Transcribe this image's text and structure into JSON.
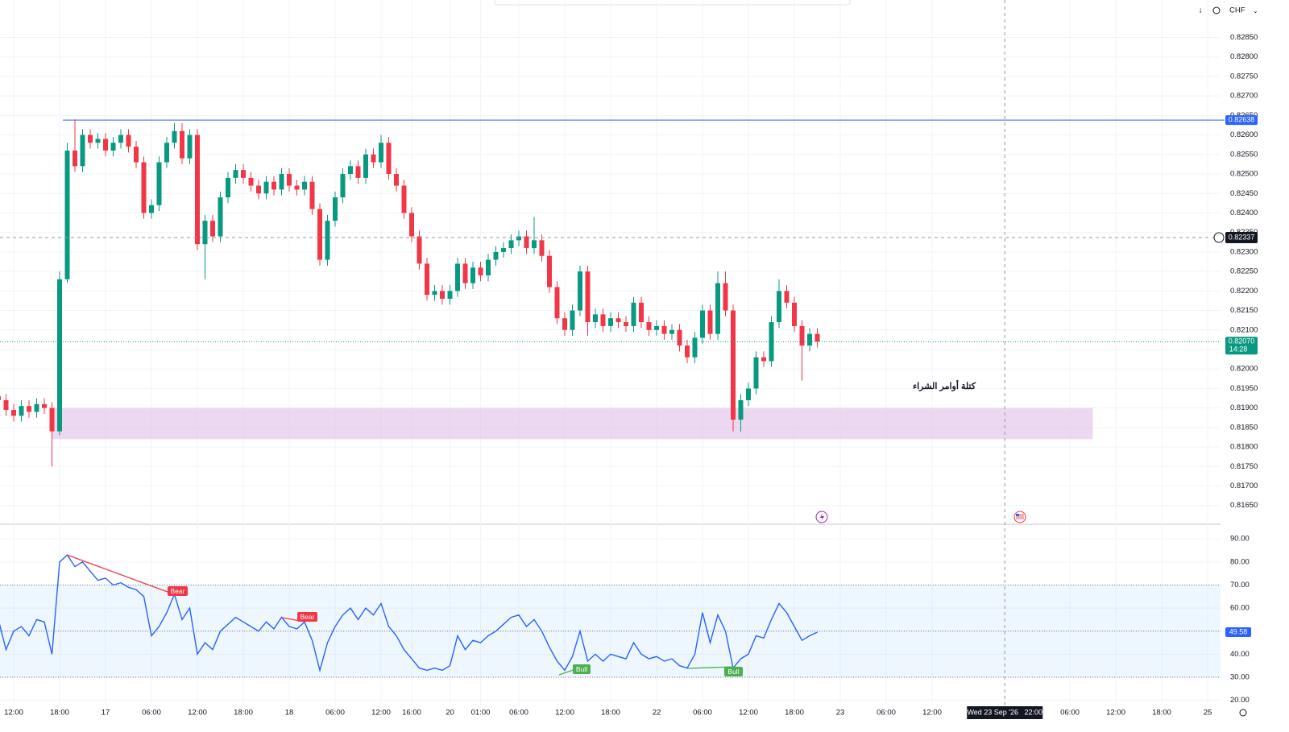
{
  "chart_data": [
    {
      "type": "candlestick",
      "currency": "CHF",
      "up_color": "#089981",
      "down_color": "#f23645",
      "xlim": [
        0,
        160
      ],
      "ylim": [
        0.81604,
        0.82946
      ],
      "xticks": [
        {
          "value": 2,
          "label": "12:00"
        },
        {
          "value": 8,
          "label": "18:00"
        },
        {
          "value": 14,
          "label": "17"
        },
        {
          "value": 20,
          "label": "06:00"
        },
        {
          "value": 26,
          "label": "12:00"
        },
        {
          "value": 32,
          "label": "18:00"
        },
        {
          "value": 38,
          "label": "18"
        },
        {
          "value": 44,
          "label": "06:00"
        },
        {
          "value": 50,
          "label": "12:00"
        },
        {
          "value": 54,
          "label": "16:00"
        },
        {
          "value": 59,
          "label": "20"
        },
        {
          "value": 63,
          "label": "01:00"
        },
        {
          "value": 68,
          "label": "06:00"
        },
        {
          "value": 74,
          "label": "12:00"
        },
        {
          "value": 80,
          "label": "18:00"
        },
        {
          "value": 86,
          "label": "22"
        },
        {
          "value": 92,
          "label": "06:00"
        },
        {
          "value": 98,
          "label": "12:00"
        },
        {
          "value": 104,
          "label": "18:00"
        },
        {
          "value": 110,
          "label": "23"
        },
        {
          "value": 116,
          "label": "06:00"
        },
        {
          "value": 122,
          "label": "12:00"
        },
        {
          "value": 140,
          "label": "06:00"
        },
        {
          "value": 146,
          "label": "12:00"
        },
        {
          "value": 152,
          "label": "18:00"
        },
        {
          "value": 158,
          "label": "25"
        }
      ],
      "yticks": [
        {
          "value": 0.8165,
          "label": "0.81650"
        },
        {
          "value": 0.817,
          "label": "0.81700"
        },
        {
          "value": 0.8175,
          "label": "0.81750"
        },
        {
          "value": 0.818,
          "label": "0.81800"
        },
        {
          "value": 0.8185,
          "label": "0.81850"
        },
        {
          "value": 0.819,
          "label": "0.81900"
        },
        {
          "value": 0.8195,
          "label": "0.81950"
        },
        {
          "value": 0.82,
          "label": "0.82000"
        },
        {
          "value": 0.8205,
          "label": "0.82050"
        },
        {
          "value": 0.821,
          "label": "0.82100"
        },
        {
          "value": 0.8215,
          "label": "0.82150"
        },
        {
          "value": 0.822,
          "label": "0.82200"
        },
        {
          "value": 0.8225,
          "label": "0.82250"
        },
        {
          "value": 0.823,
          "label": "0.82300"
        },
        {
          "value": 0.8235,
          "label": "0.82350"
        },
        {
          "value": 0.824,
          "label": "0.82400"
        },
        {
          "value": 0.8245,
          "label": "0.82450"
        },
        {
          "value": 0.825,
          "label": "0.82500"
        },
        {
          "value": 0.8255,
          "label": "0.82550"
        },
        {
          "value": 0.826,
          "label": "0.82600"
        },
        {
          "value": 0.8265,
          "label": "0.82650"
        },
        {
          "value": 0.827,
          "label": "0.82700"
        },
        {
          "value": 0.8275,
          "label": "0.82750"
        },
        {
          "value": 0.828,
          "label": "0.82800"
        },
        {
          "value": 0.8285,
          "label": "0.82850"
        }
      ],
      "open": [
        0.8193,
        0.8192,
        0.81895,
        0.8188,
        0.81905,
        0.8189,
        0.8191,
        0.819,
        0.8184,
        0.8223,
        0.8256,
        0.8252,
        0.826,
        0.8258,
        0.8259,
        0.8256,
        0.8258,
        0.826,
        0.8257,
        0.8253,
        0.824,
        0.8242,
        0.8253,
        0.8258,
        0.8261,
        0.8254,
        0.826,
        0.8232,
        0.8238,
        0.8234,
        0.8244,
        0.8249,
        0.8251,
        0.8249,
        0.8247,
        0.8245,
        0.8248,
        0.8246,
        0.825,
        0.8247,
        0.8246,
        0.8248,
        0.8241,
        0.8228,
        0.8238,
        0.8244,
        0.825,
        0.8252,
        0.8249,
        0.8255,
        0.8253,
        0.8258,
        0.825,
        0.8247,
        0.824,
        0.8234,
        0.8227,
        0.8219,
        0.822,
        0.8218,
        0.822,
        0.8227,
        0.8222,
        0.8226,
        0.8224,
        0.8228,
        0.823,
        0.8231,
        0.8233,
        0.8234,
        0.8231,
        0.8233,
        0.8229,
        0.8221,
        0.8213,
        0.821,
        0.8215,
        0.8225,
        0.8212,
        0.8214,
        0.8211,
        0.8213,
        0.8212,
        0.8211,
        0.8217,
        0.8212,
        0.821,
        0.8211,
        0.8209,
        0.821,
        0.8206,
        0.8203,
        0.8208,
        0.8215,
        0.8209,
        0.8222,
        0.8215,
        0.8187,
        0.8192,
        0.8195,
        0.8203,
        0.8202,
        0.8212,
        0.822,
        0.8217,
        0.8211,
        0.8206,
        0.8209
      ],
      "high": [
        0.81945,
        0.81935,
        0.8191,
        0.8192,
        0.8192,
        0.81925,
        0.81925,
        0.81915,
        0.8225,
        0.8258,
        0.8264,
        0.82615,
        0.82615,
        0.82605,
        0.82605,
        0.82595,
        0.82615,
        0.82615,
        0.82585,
        0.82545,
        0.82435,
        0.82545,
        0.82595,
        0.8263,
        0.8263,
        0.82615,
        0.82615,
        0.82395,
        0.82395,
        0.82455,
        0.82505,
        0.82525,
        0.82525,
        0.82505,
        0.82485,
        0.82495,
        0.82495,
        0.82515,
        0.82515,
        0.82485,
        0.82495,
        0.82495,
        0.82425,
        0.82395,
        0.82455,
        0.82515,
        0.82535,
        0.82535,
        0.82565,
        0.82565,
        0.826,
        0.82595,
        0.82515,
        0.82485,
        0.82415,
        0.82355,
        0.82285,
        0.82215,
        0.82215,
        0.82215,
        0.82285,
        0.82285,
        0.82275,
        0.82275,
        0.82295,
        0.82315,
        0.82325,
        0.82345,
        0.82355,
        0.82355,
        0.8239,
        0.82345,
        0.82305,
        0.82225,
        0.82145,
        0.82165,
        0.82265,
        0.82265,
        0.82155,
        0.82155,
        0.82145,
        0.82145,
        0.82135,
        0.82185,
        0.82185,
        0.82135,
        0.82125,
        0.82125,
        0.82115,
        0.82115,
        0.82075,
        0.82095,
        0.82165,
        0.82165,
        0.8225,
        0.8225,
        0.82165,
        0.81935,
        0.81965,
        0.82045,
        0.82045,
        0.82135,
        0.8223,
        0.82215,
        0.82185,
        0.82125,
        0.82105,
        0.82105
      ],
      "low": [
        0.81905,
        0.8188,
        0.81865,
        0.81865,
        0.81875,
        0.81875,
        0.81885,
        0.8175,
        0.8183,
        0.8222,
        0.82505,
        0.82505,
        0.82565,
        0.82565,
        0.82545,
        0.82545,
        0.82565,
        0.82555,
        0.82515,
        0.82385,
        0.82385,
        0.82405,
        0.82515,
        0.82565,
        0.82525,
        0.82525,
        0.82305,
        0.8223,
        0.82325,
        0.82325,
        0.82425,
        0.82475,
        0.82475,
        0.82455,
        0.82435,
        0.82435,
        0.82445,
        0.82445,
        0.82455,
        0.82445,
        0.82445,
        0.82395,
        0.82265,
        0.82265,
        0.82365,
        0.82425,
        0.82485,
        0.82475,
        0.82475,
        0.82515,
        0.82515,
        0.82485,
        0.82455,
        0.82385,
        0.82325,
        0.82255,
        0.82175,
        0.82175,
        0.82165,
        0.82165,
        0.82185,
        0.82205,
        0.82205,
        0.82225,
        0.82225,
        0.82265,
        0.82285,
        0.82295,
        0.82315,
        0.82295,
        0.82295,
        0.82275,
        0.82195,
        0.82115,
        0.82085,
        0.82085,
        0.82135,
        0.82085,
        0.82105,
        0.82095,
        0.82095,
        0.82105,
        0.82095,
        0.82095,
        0.82105,
        0.82085,
        0.82085,
        0.82075,
        0.82075,
        0.82045,
        0.82015,
        0.82015,
        0.82065,
        0.82075,
        0.82075,
        0.82135,
        0.8184,
        0.8184,
        0.81905,
        0.81935,
        0.82005,
        0.82005,
        0.82105,
        0.82155,
        0.82095,
        0.8197,
        0.82045,
        0.82055
      ],
      "close": [
        0.8192,
        0.81895,
        0.8188,
        0.81905,
        0.8189,
        0.8191,
        0.819,
        0.8184,
        0.8223,
        0.8256,
        0.8252,
        0.826,
        0.8258,
        0.8259,
        0.8256,
        0.8258,
        0.826,
        0.8257,
        0.8253,
        0.824,
        0.8242,
        0.8253,
        0.8258,
        0.8261,
        0.8254,
        0.826,
        0.8232,
        0.8238,
        0.8234,
        0.8244,
        0.8249,
        0.8251,
        0.8249,
        0.8247,
        0.8245,
        0.8248,
        0.8246,
        0.825,
        0.8247,
        0.8246,
        0.8248,
        0.8241,
        0.8228,
        0.8238,
        0.8244,
        0.825,
        0.8252,
        0.8249,
        0.8255,
        0.8253,
        0.8258,
        0.825,
        0.8247,
        0.824,
        0.8234,
        0.8227,
        0.8219,
        0.822,
        0.8218,
        0.822,
        0.8227,
        0.8222,
        0.8226,
        0.8224,
        0.8228,
        0.823,
        0.8231,
        0.8233,
        0.8234,
        0.8231,
        0.8233,
        0.8229,
        0.8221,
        0.8213,
        0.821,
        0.8215,
        0.8225,
        0.8212,
        0.8214,
        0.8211,
        0.8213,
        0.8212,
        0.8211,
        0.8217,
        0.8212,
        0.821,
        0.8211,
        0.8209,
        0.821,
        0.8206,
        0.8203,
        0.8208,
        0.8215,
        0.8209,
        0.8222,
        0.8215,
        0.8187,
        0.8192,
        0.8195,
        0.8203,
        0.8202,
        0.8212,
        0.822,
        0.8217,
        0.8211,
        0.8206,
        0.8209,
        0.8207
      ],
      "hline": {
        "value": 0.82638,
        "label": "0.82638",
        "color": "#2962ff"
      },
      "last_price": {
        "value": 0.8207,
        "label": "0.82070",
        "countdown": "14:28"
      },
      "crosshair": {
        "x": 131.5,
        "price": 0.82337,
        "price_label": "0.82337",
        "time_label": "Wed 23 Sep '26   22:00"
      },
      "zone": {
        "label": "كتلة أوامر الشراء",
        "top": 0.819,
        "bottom": 0.8182,
        "start": 7,
        "end": 143,
        "color": "#e1bee7"
      }
    },
    {
      "type": "line",
      "color": "#2962ff",
      "xlim": [
        0,
        160
      ],
      "ylim": [
        15,
        96
      ],
      "yticks": [
        {
          "value": 20,
          "label": "20.00"
        },
        {
          "value": 30,
          "label": "30.00"
        },
        {
          "value": 40,
          "label": "40.00"
        },
        {
          "value": 50,
          "label": "50.00"
        },
        {
          "value": 60,
          "label": "60.00"
        },
        {
          "value": 70,
          "label": "70.00"
        },
        {
          "value": 80,
          "label": "80.00"
        },
        {
          "value": 90,
          "label": "90.00"
        }
      ],
      "band": [
        30,
        70
      ],
      "levels": [
        70,
        50,
        30
      ],
      "values": [
        55,
        42,
        50,
        52,
        48,
        55,
        54,
        40,
        80,
        83,
        78,
        80,
        76,
        72,
        73,
        70,
        71,
        69,
        68,
        65,
        48,
        52,
        58,
        66,
        55,
        60,
        40,
        45,
        42,
        50,
        53,
        56,
        54,
        52,
        50,
        54,
        51,
        56,
        52,
        51,
        54,
        46,
        33,
        45,
        52,
        57,
        60,
        55,
        60,
        57,
        62,
        52,
        48,
        42,
        38,
        34,
        33,
        34,
        33,
        35,
        48,
        42,
        46,
        45,
        48,
        50,
        53,
        56,
        57,
        52,
        55,
        50,
        43,
        37,
        33,
        39,
        50,
        37,
        40,
        37,
        40,
        39,
        38,
        45,
        40,
        38,
        39,
        37,
        38,
        35,
        34,
        40,
        58,
        45,
        57,
        50,
        34,
        38,
        40,
        48,
        47,
        55,
        62,
        58,
        52,
        46,
        48,
        49.58
      ],
      "annotations": [
        "Bear",
        "Bear",
        "Bull",
        "Bull"
      ]
    }
  ]
}
